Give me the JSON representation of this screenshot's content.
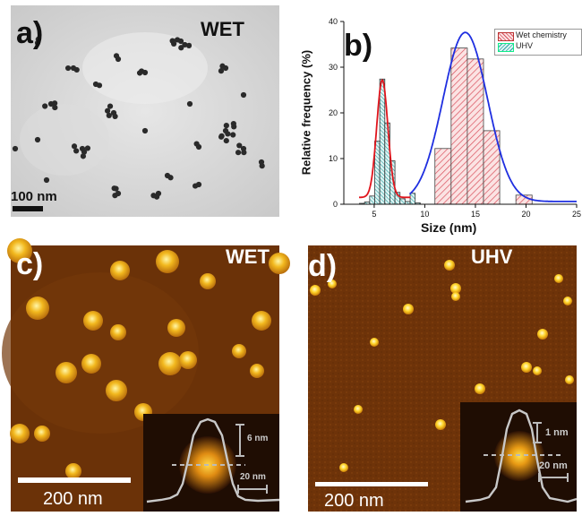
{
  "panels": {
    "a": {
      "label": "a)",
      "tag": "WET",
      "scale_bar": "100 nm"
    },
    "b": {
      "label": "b)"
    },
    "c": {
      "label": "c)",
      "tag": "WET",
      "scale_bar": "200 nm",
      "inset_height": "6 nm",
      "inset_width": "20 nm"
    },
    "d": {
      "label": "d)",
      "tag": "UHV",
      "scale_bar": "200 nm",
      "inset_height": "1 nm",
      "inset_width": "20 nm"
    }
  },
  "colors": {
    "wet_hatch": "#d94f5c",
    "uhv_hatch": "#2ca6a4",
    "wet_fit": "#1f2fe0",
    "uhv_fit": "#e0141c",
    "afm_bg": "#6b3208"
  },
  "chart_data": {
    "type": "bar",
    "xlabel": "Size (nm)",
    "ylabel": "Relative frequency (%)",
    "xlim": [
      2,
      25
    ],
    "ylim": [
      0,
      40
    ],
    "xticks": [
      5,
      10,
      15,
      20,
      25
    ],
    "yticks": [
      0,
      10,
      20,
      30,
      40
    ],
    "legend_position": "top-right",
    "series": [
      {
        "name": "Wet chemistry",
        "bin_width": 1.6,
        "bins": [
          {
            "center": 11.8,
            "value": 12.2
          },
          {
            "center": 13.4,
            "value": 34.2
          },
          {
            "center": 15.0,
            "value": 31.8
          },
          {
            "center": 16.6,
            "value": 16.1
          },
          {
            "center": 18.2,
            "value": 0.0
          },
          {
            "center": 19.8,
            "value": 2.0
          }
        ],
        "fit": {
          "type": "gaussian",
          "center": 14.0,
          "sigma": 2.2,
          "amplitude": 37.0,
          "baseline": 0.6
        }
      },
      {
        "name": "UHV",
        "bin_width": 0.5,
        "bins": [
          {
            "center": 3.8,
            "value": 0.2
          },
          {
            "center": 4.3,
            "value": 0.5
          },
          {
            "center": 4.8,
            "value": 1.8
          },
          {
            "center": 5.3,
            "value": 13.8
          },
          {
            "center": 5.8,
            "value": 27.4
          },
          {
            "center": 6.3,
            "value": 17.8
          },
          {
            "center": 6.8,
            "value": 9.5
          },
          {
            "center": 7.3,
            "value": 2.6
          },
          {
            "center": 7.8,
            "value": 1.2
          },
          {
            "center": 8.3,
            "value": 0.6
          },
          {
            "center": 8.8,
            "value": 2.4
          },
          {
            "center": 9.3,
            "value": 0.3
          }
        ],
        "fit": {
          "type": "gaussian",
          "center": 5.8,
          "sigma": 0.55,
          "amplitude": 25.7,
          "baseline": 1.5
        }
      }
    ]
  }
}
